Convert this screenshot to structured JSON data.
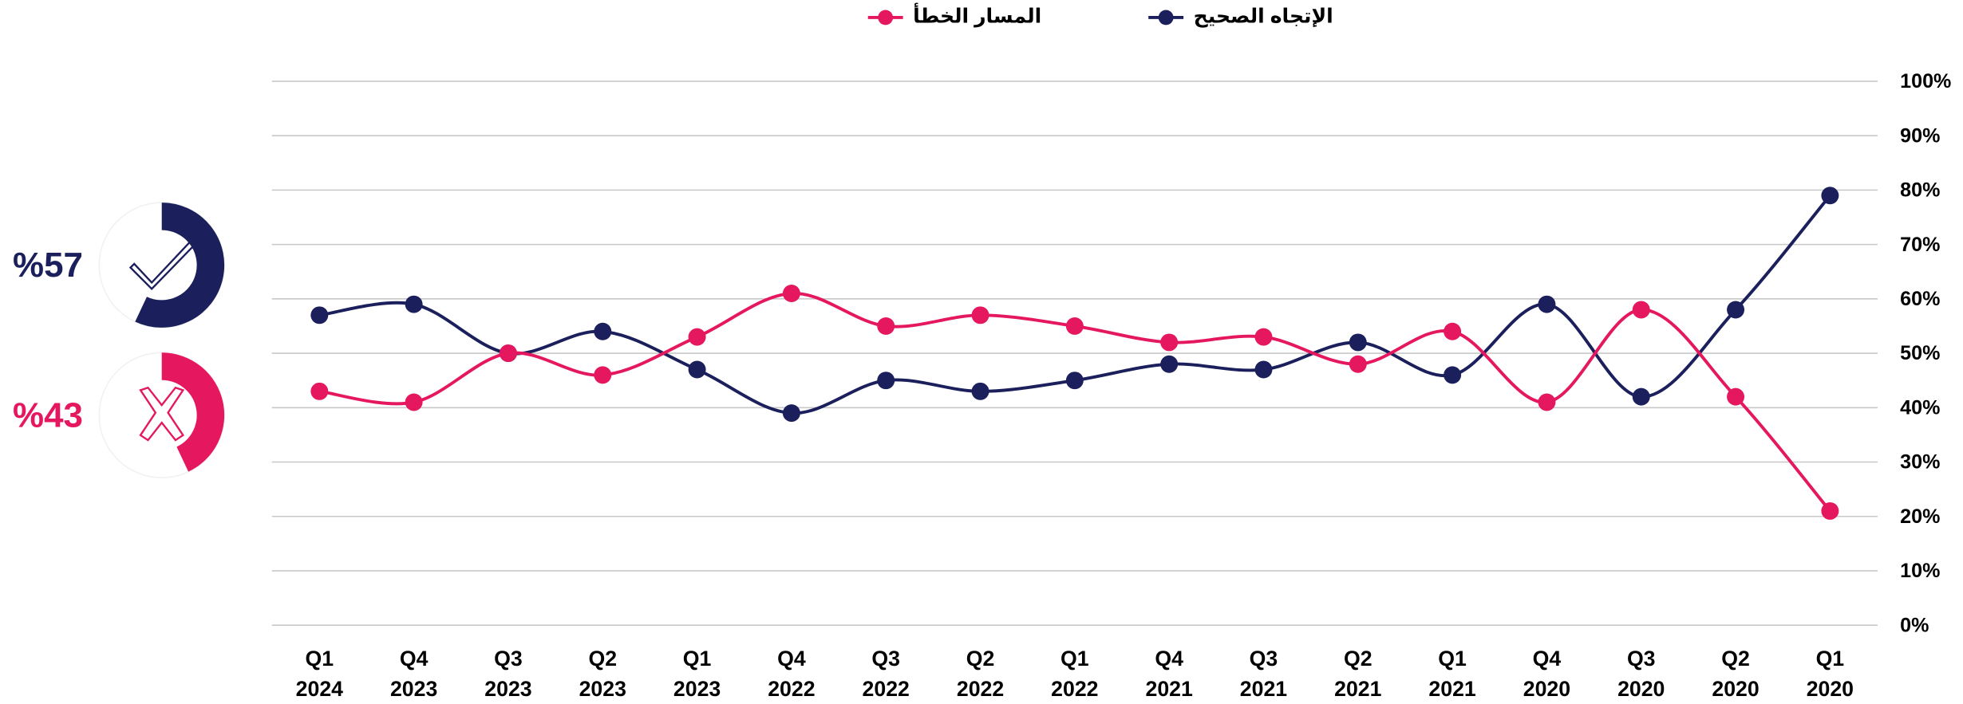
{
  "chart_data": {
    "type": "line",
    "categories": [
      [
        "Q1",
        "2024"
      ],
      [
        "Q4",
        "2023"
      ],
      [
        "Q3",
        "2023"
      ],
      [
        "Q2",
        "2023"
      ],
      [
        "Q1",
        "2023"
      ],
      [
        "Q4",
        "2022"
      ],
      [
        "Q3",
        "2022"
      ],
      [
        "Q2",
        "2022"
      ],
      [
        "Q1",
        "2022"
      ],
      [
        "Q4",
        "2021"
      ],
      [
        "Q3",
        "2021"
      ],
      [
        "Q2",
        "2021"
      ],
      [
        "Q1",
        "2021"
      ],
      [
        "Q4",
        "2020"
      ],
      [
        "Q3",
        "2020"
      ],
      [
        "Q2",
        "2020"
      ],
      [
        "Q1",
        "2020"
      ]
    ],
    "series": [
      {
        "name": "الإتجاه الصحيح",
        "color": "#1b1f5c",
        "values": [
          57,
          59,
          50,
          54,
          47,
          39,
          45,
          43,
          45,
          48,
          47,
          52,
          46,
          59,
          42,
          58,
          79
        ]
      },
      {
        "name": "المسار الخطأ",
        "color": "#e5175f",
        "values": [
          43,
          41,
          50,
          46,
          53,
          61,
          55,
          57,
          55,
          52,
          53,
          48,
          54,
          41,
          58,
          42,
          21
        ]
      }
    ],
    "ylim": [
      0,
      100
    ],
    "yticks": [
      {
        "value": 0,
        "label": "0%"
      },
      {
        "value": 10,
        "label": "10%"
      },
      {
        "value": 20,
        "label": "20%"
      },
      {
        "value": 30,
        "label": "30%"
      },
      {
        "value": 40,
        "label": "40%"
      },
      {
        "value": 50,
        "label": "50%"
      },
      {
        "value": 60,
        "label": "60%"
      },
      {
        "value": 70,
        "label": "70%"
      },
      {
        "value": 80,
        "label": "80%"
      },
      {
        "value": 90,
        "label": "90%"
      },
      {
        "value": 100,
        "label": "100%"
      }
    ],
    "grid": true,
    "smooth": true,
    "summary": [
      {
        "value": 57,
        "label": "%57",
        "color": "#1b1f5c"
      },
      {
        "value": 43,
        "label": "%43",
        "color": "#e5175f"
      }
    ]
  }
}
